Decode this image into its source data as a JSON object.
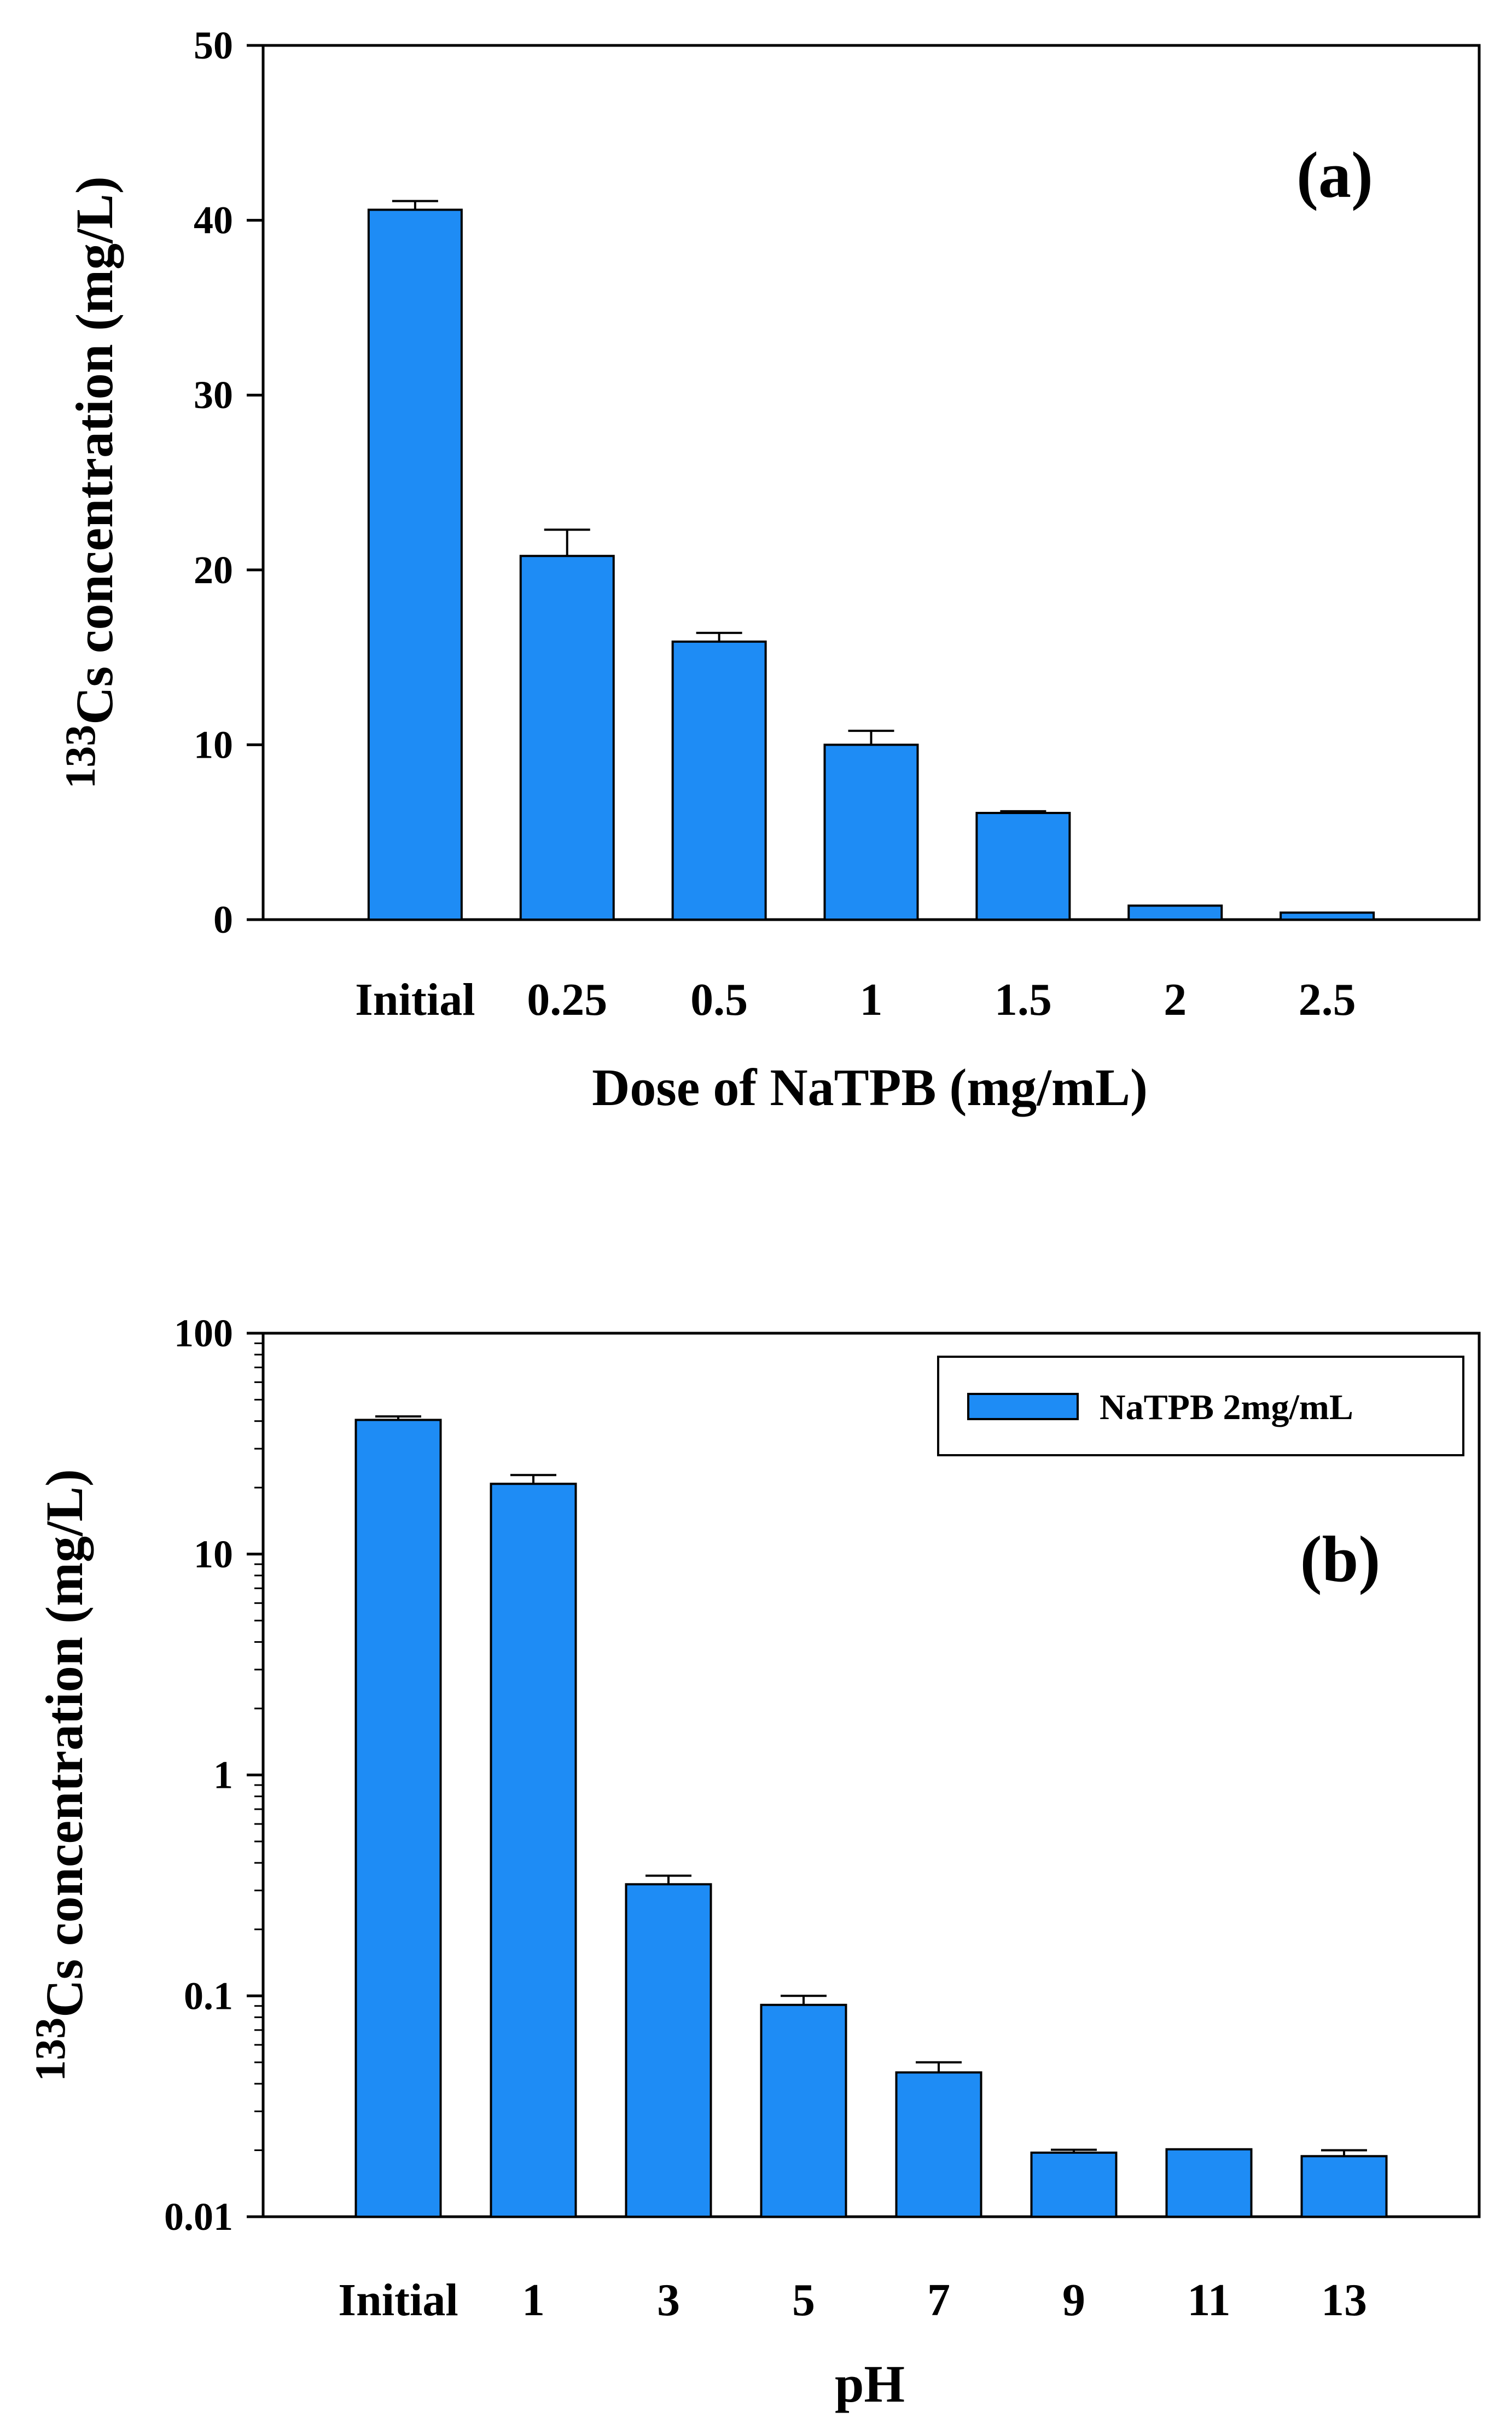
{
  "colors": {
    "bar": "#1E8CF5",
    "axis": "#000000",
    "background": "#ffffff"
  },
  "chart_data": [
    {
      "panel": "(a)",
      "type": "bar",
      "scale": "linear",
      "xlabel": "Dose of NaTPB  (mg/mL)",
      "ylabel_sup": "133",
      "ylabel_main": "Cs  concentration  (mg/L)",
      "ylim": [
        0,
        50
      ],
      "yticks": [
        0,
        10,
        20,
        30,
        40,
        50
      ],
      "ytick_labels": [
        "0",
        "10",
        "20",
        "30",
        "40",
        "50"
      ],
      "categories": [
        "Initial",
        "0.25",
        "0.5",
        "1",
        "1.5",
        "2",
        "2.5"
      ],
      "values": [
        40.6,
        20.8,
        15.9,
        10.0,
        6.1,
        0.8,
        0.4
      ],
      "errors": [
        0.5,
        1.5,
        0.5,
        0.8,
        0.1,
        0.0,
        0.0
      ]
    },
    {
      "panel": "(b)",
      "type": "bar",
      "scale": "log",
      "xlabel": "pH",
      "ylabel_sup": "133",
      "ylabel_main": "Cs  concentration  (mg/L)",
      "ylim": [
        0.01,
        100
      ],
      "yticks": [
        0.01,
        0.1,
        1,
        10,
        100
      ],
      "ytick_labels": [
        "0.01",
        "0.1",
        "1",
        "10",
        "100"
      ],
      "categories": [
        "Initial",
        "1",
        "3",
        "5",
        "7",
        "9",
        "11",
        "13"
      ],
      "values": [
        40.5,
        20.8,
        0.32,
        0.091,
        0.045,
        0.0195,
        0.0202,
        0.0188
      ],
      "errors": [
        1.5,
        2.0,
        0.03,
        0.009,
        0.005,
        0.0006,
        0.0,
        0.0012
      ],
      "legend": "NaTPB 2mg/mL",
      "legend_position": "top-right"
    }
  ]
}
